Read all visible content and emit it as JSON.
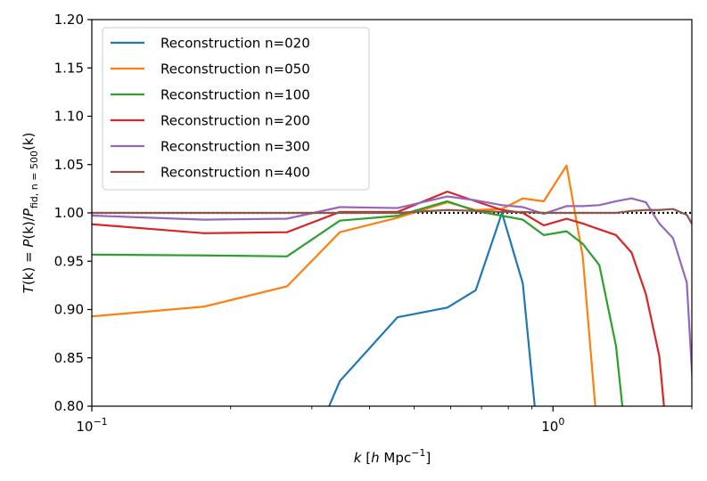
{
  "chart_data": {
    "type": "line",
    "x_scale": "log",
    "xlim": [
      0.1,
      2.0
    ],
    "ylim": [
      0.8,
      1.2
    ],
    "grid": false,
    "legend_position": "upper-left",
    "xlabel_parts": {
      "k": "k",
      "bracket_open": " [",
      "h": "h",
      "mpc": " Mpc",
      "exp": "−1",
      "bracket_close": "]"
    },
    "ylabel_parts": {
      "T": "T",
      "k1": "(k) = ",
      "P1": "P",
      "k2": "(k)/",
      "P2": "P",
      "sub": "fid, n = 500",
      "k3": "(k)"
    },
    "x_ticks": [
      {
        "value": 0.1,
        "base": "10",
        "exp": "−1"
      },
      {
        "value": 1.0,
        "base": "10",
        "exp": "0"
      }
    ],
    "x_minor_ticks": [
      0.2,
      0.3,
      0.4,
      0.5,
      0.6,
      0.7,
      0.8,
      0.9,
      2.0
    ],
    "y_ticks": [
      {
        "value": 0.8,
        "label": "0.80"
      },
      {
        "value": 0.85,
        "label": "0.85"
      },
      {
        "value": 0.9,
        "label": "0.90"
      },
      {
        "value": 0.95,
        "label": "0.95"
      },
      {
        "value": 1.0,
        "label": "1.00"
      },
      {
        "value": 1.05,
        "label": "1.05"
      },
      {
        "value": 1.1,
        "label": "1.10"
      },
      {
        "value": 1.15,
        "label": "1.15"
      },
      {
        "value": 1.2,
        "label": "1.20"
      }
    ],
    "reference_line": {
      "y": 1.0,
      "color": "#000000",
      "style": "dotted"
    },
    "series": [
      {
        "name": "Reconstruction n=020",
        "color": "#1f77b4",
        "x": [
          0.295,
          0.345,
          0.46,
          0.59,
          0.68,
          0.775,
          0.86,
          0.93
        ],
        "y": [
          0.75,
          0.826,
          0.892,
          0.902,
          0.92,
          1.0,
          0.927,
          0.76
        ]
      },
      {
        "name": "Reconstruction n=050",
        "color": "#ff7f0e",
        "x": [
          0.09,
          0.175,
          0.265,
          0.345,
          0.46,
          0.59,
          0.68,
          0.775,
          0.86,
          0.955,
          1.07,
          1.16,
          1.26
        ],
        "y": [
          0.891,
          0.903,
          0.924,
          0.98,
          0.995,
          1.011,
          1.003,
          1.004,
          1.015,
          1.012,
          1.049,
          0.955,
          0.75
        ]
      },
      {
        "name": "Reconstruction n=100",
        "color": "#2ca02c",
        "x": [
          0.09,
          0.175,
          0.265,
          0.345,
          0.46,
          0.59,
          0.68,
          0.775,
          0.86,
          0.955,
          1.07,
          1.16,
          1.26,
          1.37,
          1.45
        ],
        "y": [
          0.957,
          0.956,
          0.955,
          0.992,
          0.997,
          1.012,
          1.002,
          0.997,
          0.993,
          0.977,
          0.981,
          0.968,
          0.946,
          0.862,
          0.75
        ]
      },
      {
        "name": "Reconstruction n=200",
        "color": "#d62728",
        "x": [
          0.09,
          0.175,
          0.265,
          0.345,
          0.46,
          0.59,
          0.68,
          0.775,
          0.86,
          0.955,
          1.07,
          1.16,
          1.26,
          1.37,
          1.48,
          1.59,
          1.7,
          1.78
        ],
        "y": [
          0.99,
          0.979,
          0.98,
          1.001,
          1.001,
          1.022,
          1.012,
          1.003,
          1.0,
          0.987,
          0.994,
          0.989,
          0.983,
          0.977,
          0.959,
          0.916,
          0.852,
          0.75
        ]
      },
      {
        "name": "Reconstruction n=300",
        "color": "#9467bd",
        "x": [
          0.09,
          0.175,
          0.265,
          0.345,
          0.46,
          0.59,
          0.68,
          0.775,
          0.86,
          0.955,
          1.07,
          1.16,
          1.26,
          1.37,
          1.48,
          1.59,
          1.7,
          1.82,
          1.95,
          2.05
        ],
        "y": [
          0.998,
          0.993,
          0.994,
          1.006,
          1.005,
          1.017,
          1.013,
          1.008,
          1.006,
          0.999,
          1.007,
          1.007,
          1.008,
          1.012,
          1.015,
          1.011,
          0.989,
          0.974,
          0.928,
          0.75
        ]
      },
      {
        "name": "Reconstruction n=400",
        "color": "#8c564b",
        "x": [
          0.09,
          0.175,
          0.265,
          0.345,
          0.46,
          0.59,
          0.68,
          0.775,
          0.86,
          0.955,
          1.07,
          1.16,
          1.26,
          1.37,
          1.48,
          1.59,
          1.7,
          1.82,
          1.95,
          2.05
        ],
        "y": [
          1.0,
          1.0,
          1.0,
          1.0,
          1.0,
          1.003,
          1.002,
          1.001,
          1.001,
          1.0,
          1.0,
          1.0,
          1.0,
          1.0,
          1.002,
          1.003,
          1.003,
          1.004,
          0.998,
          0.98
        ]
      }
    ]
  }
}
